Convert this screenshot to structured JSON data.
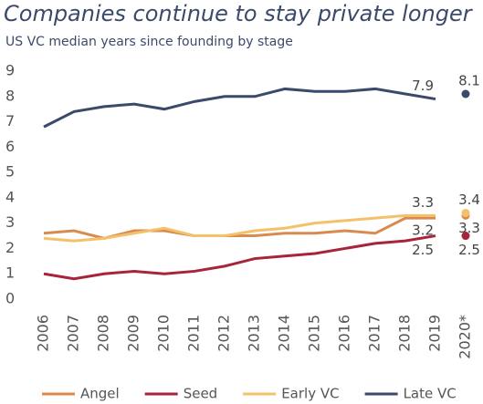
{
  "chart_data": {
    "type": "line",
    "title": "Companies continue to stay private longer",
    "subtitle": "US VC median years since founding by stage",
    "categories": [
      "2006",
      "2007",
      "2008",
      "2009",
      "2010",
      "2011",
      "2012",
      "2013",
      "2014",
      "2015",
      "2016",
      "2017",
      "2018",
      "2019",
      "2020*"
    ],
    "series": [
      {
        "name": "Angel",
        "color": "#d98a4e",
        "values": [
          2.6,
          2.7,
          2.4,
          2.7,
          2.7,
          2.5,
          2.5,
          2.5,
          2.6,
          2.6,
          2.7,
          2.6,
          3.2,
          3.2,
          3.3
        ]
      },
      {
        "name": "Seed",
        "color": "#a8243a",
        "values": [
          1.0,
          0.8,
          1.0,
          1.1,
          1.0,
          1.1,
          1.3,
          1.6,
          1.7,
          1.8,
          2.0,
          2.2,
          2.3,
          2.5,
          2.5
        ]
      },
      {
        "name": "Early VC",
        "color": "#f5c06a",
        "values": [
          2.4,
          2.3,
          2.4,
          2.6,
          2.8,
          2.5,
          2.5,
          2.7,
          2.8,
          3.0,
          3.1,
          3.2,
          3.3,
          3.3,
          3.4
        ]
      },
      {
        "name": "Late VC",
        "color": "#3b4a6b",
        "values": [
          6.8,
          7.4,
          7.6,
          7.7,
          7.5,
          7.8,
          8.0,
          8.0,
          8.3,
          8.2,
          8.2,
          8.3,
          8.1,
          7.9,
          8.1
        ]
      }
    ],
    "connect_last": false,
    "labeled_points": [
      13,
      14
    ],
    "ylim": [
      0,
      9
    ],
    "yticks": [
      0,
      1,
      2,
      3,
      4,
      5,
      6,
      7,
      8,
      9
    ],
    "grid": false,
    "legend": "bottom"
  }
}
